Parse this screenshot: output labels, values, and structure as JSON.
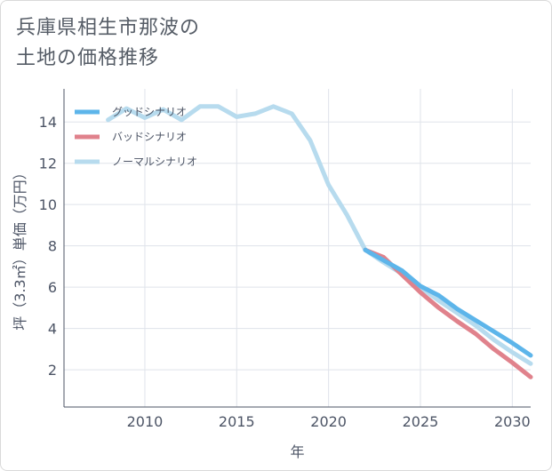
{
  "title_lines": [
    "兵庫県相生市那波の",
    "土地の価格推移"
  ],
  "chart_data": {
    "type": "line",
    "title": "兵庫県相生市那波の土地の価格推移",
    "xlabel": "年",
    "ylabel": "坪（3.3㎡）単価（万円）",
    "xlim": [
      2005.6,
      2031
    ],
    "ylim": [
      0.2,
      15.6
    ],
    "xticks": [
      2010,
      2015,
      2020,
      2025,
      2030
    ],
    "yticks": [
      2,
      4,
      6,
      8,
      10,
      12,
      14
    ],
    "grid": true,
    "legend_position": "top-left",
    "series": [
      {
        "name": "グッドシナリオ",
        "color": "#5db5ea",
        "points": [
          [
            2022,
            7.8
          ],
          [
            2023,
            7.3
          ],
          [
            2024,
            6.8
          ],
          [
            2025,
            6.05
          ],
          [
            2026,
            5.6
          ],
          [
            2027,
            4.95
          ],
          [
            2028,
            4.4
          ],
          [
            2029,
            3.85
          ],
          [
            2030,
            3.3
          ],
          [
            2031,
            2.7
          ]
        ]
      },
      {
        "name": "バッドシナリオ",
        "color": "#e0828c",
        "points": [
          [
            2022,
            7.8
          ],
          [
            2023,
            7.45
          ],
          [
            2024,
            6.6
          ],
          [
            2025,
            5.75
          ],
          [
            2026,
            5.0
          ],
          [
            2027,
            4.35
          ],
          [
            2028,
            3.75
          ],
          [
            2029,
            3.0
          ],
          [
            2030,
            2.35
          ],
          [
            2031,
            1.65
          ]
        ]
      },
      {
        "name": "ノーマルシナリオ",
        "color": "#b7dbee",
        "points": [
          [
            2008,
            14.1
          ],
          [
            2009,
            14.65
          ],
          [
            2010,
            14.2
          ],
          [
            2011,
            14.6
          ],
          [
            2012,
            14.1
          ],
          [
            2013,
            14.75
          ],
          [
            2014,
            14.75
          ],
          [
            2015,
            14.25
          ],
          [
            2016,
            14.4
          ],
          [
            2017,
            14.75
          ],
          [
            2018,
            14.4
          ],
          [
            2019,
            13.1
          ],
          [
            2020,
            10.95
          ],
          [
            2021,
            9.5
          ],
          [
            2022,
            7.8
          ],
          [
            2023,
            7.2
          ],
          [
            2024,
            6.65
          ],
          [
            2025,
            6.0
          ],
          [
            2026,
            5.35
          ],
          [
            2027,
            4.75
          ],
          [
            2028,
            4.15
          ],
          [
            2029,
            3.45
          ],
          [
            2030,
            2.85
          ],
          [
            2031,
            2.3
          ]
        ]
      }
    ]
  }
}
